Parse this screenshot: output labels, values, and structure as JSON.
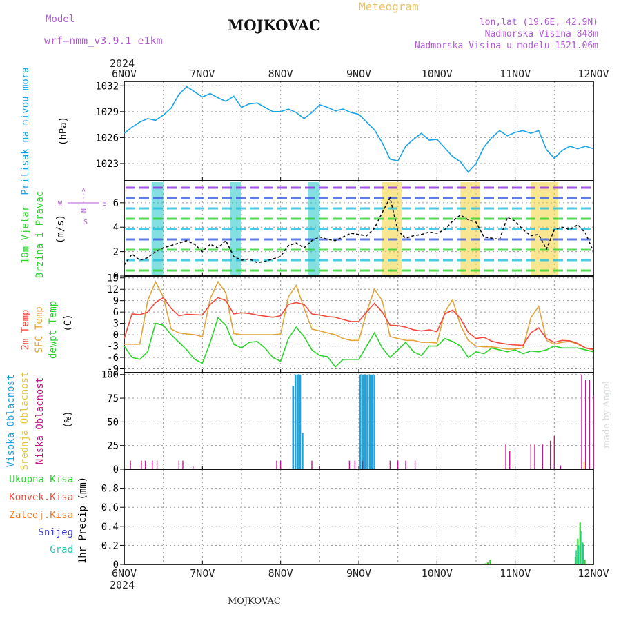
{
  "header": {
    "model_label": "Model",
    "model_name": "wrf—nmm_v3.9.1  e1km",
    "city": "MOJKOVAC",
    "meteogram": "Meteogram",
    "lonlat": "lon,lat (19.6E, 42.9N)",
    "altitude": "Nadmorska Visina 848m",
    "model_altitude": "Nadmorska Visina u modelu 1521.06m"
  },
  "footer": {
    "city": "MOJKOVAC",
    "credit": "made by Angel"
  },
  "time_axis": {
    "year": "2024",
    "ticks": [
      "6NOV",
      "7NOV",
      "8NOV",
      "9NOV",
      "10NOV",
      "11NOV",
      "12NOV"
    ]
  },
  "colors": {
    "pressure": "#1aa3e6",
    "temp2m": "#f04a3e",
    "sfc": "#e3a43a",
    "dewpt": "#2ad42a",
    "high_cloud": "#1aa3e6",
    "mid_cloud": "#e3c43a",
    "low_cloud": "#c2168c",
    "total_precip": "#2ad42a",
    "conv_precip": "#f04a3e",
    "frz": "#f07c2a",
    "snow": "#3c3ce0",
    "hail": "#26c4b4",
    "wind_label": "#2ad42a",
    "compass": "#b05bd3"
  },
  "chart_data": [
    {
      "type": "line",
      "panel": "pressure",
      "ylabel_left": "Pritisak na nivou mora",
      "ylabel_unit": "(hPa)",
      "ylim": [
        1021,
        1032.5
      ],
      "yticks": [
        "1023",
        "1026",
        "1029",
        "1032"
      ],
      "grid": true,
      "series": [
        {
          "x": [
            0,
            0.1,
            0.2,
            0.3,
            0.4,
            0.5,
            0.6,
            0.7,
            0.8,
            0.9,
            1.0,
            1.1,
            1.2,
            1.3,
            1.4,
            1.5,
            1.6,
            1.7,
            1.8,
            1.9,
            2.0,
            2.1,
            2.2,
            2.3,
            2.4,
            2.5,
            2.6,
            2.7,
            2.8,
            2.9,
            3.0,
            3.1,
            3.2,
            3.3,
            3.4,
            3.5,
            3.6,
            3.7,
            3.8,
            3.9,
            4.0,
            4.1,
            4.2,
            4.3,
            4.4,
            4.5,
            4.6,
            4.7,
            4.8,
            4.9,
            5.0,
            5.1,
            5.2,
            5.3,
            5.4,
            5.5,
            5.6,
            5.7,
            5.8,
            5.9,
            6.0
          ],
          "values": [
            1026.5,
            1027.2,
            1027.8,
            1028.2,
            1028.0,
            1028.6,
            1029.4,
            1031.0,
            1031.9,
            1031.3,
            1030.7,
            1031.1,
            1030.6,
            1030.2,
            1030.8,
            1029.5,
            1029.9,
            1030.0,
            1029.5,
            1029.0,
            1029.0,
            1029.3,
            1028.9,
            1028.2,
            1028.9,
            1029.8,
            1029.5,
            1029.1,
            1029.3,
            1028.9,
            1028.7,
            1027.8,
            1026.9,
            1025.4,
            1023.5,
            1023.3,
            1025.0,
            1025.8,
            1026.5,
            1025.7,
            1025.8,
            1024.8,
            1023.8,
            1023.2,
            1022.0,
            1023.0,
            1024.9,
            1026.0,
            1026.8,
            1026.2,
            1026.6,
            1026.8,
            1026.5,
            1026.8,
            1024.6,
            1023.6,
            1024.5,
            1025.0,
            1024.7,
            1025.0,
            1024.7
          ]
        }
      ]
    },
    {
      "type": "line",
      "panel": "wind",
      "ylabel_left": [
        "10m Vjetar",
        "Brzina i Pravac"
      ],
      "ylabel_unit": "(m/s)",
      "ylim": [
        0,
        7.8
      ],
      "yticks": [
        "0",
        "2",
        "4",
        "6"
      ],
      "grid": true,
      "compass": {
        "n": "N",
        "w": "W",
        "e": "E",
        "s": "S"
      },
      "series": [
        {
          "name": "speed",
          "x": [
            0,
            0.1,
            0.2,
            0.3,
            0.4,
            0.5,
            0.6,
            0.7,
            0.8,
            0.9,
            1.0,
            1.1,
            1.2,
            1.3,
            1.4,
            1.5,
            1.6,
            1.7,
            1.8,
            1.9,
            2.0,
            2.1,
            2.2,
            2.3,
            2.4,
            2.5,
            2.6,
            2.7,
            2.8,
            2.9,
            3.0,
            3.1,
            3.2,
            3.3,
            3.4,
            3.5,
            3.6,
            3.7,
            3.8,
            3.9,
            4.0,
            4.1,
            4.2,
            4.3,
            4.4,
            4.5,
            4.6,
            4.7,
            4.8,
            4.9,
            5.0,
            5.1,
            5.2,
            5.3,
            5.4,
            5.5,
            5.6,
            5.7,
            5.8,
            5.9,
            6.0
          ],
          "values": [
            0.9,
            1.8,
            1.3,
            1.5,
            2.0,
            2.3,
            2.5,
            2.7,
            2.9,
            2.6,
            2.0,
            2.6,
            2.3,
            2.9,
            1.6,
            1.3,
            1.4,
            1.1,
            1.2,
            1.4,
            1.6,
            2.5,
            2.7,
            2.3,
            2.9,
            3.2,
            3.0,
            2.9,
            3.2,
            3.5,
            3.4,
            3.3,
            3.9,
            5.2,
            6.4,
            3.7,
            3.1,
            3.3,
            3.4,
            3.6,
            3.5,
            3.8,
            4.5,
            5.0,
            4.6,
            4.4,
            3.2,
            3.1,
            3.0,
            4.8,
            4.5,
            3.8,
            3.3,
            3.4,
            2.2,
            3.8,
            4.0,
            3.8,
            4.2,
            3.5,
            2.0
          ]
        }
      ]
    },
    {
      "type": "line",
      "panel": "temperature",
      "ylabel_left": [
        "2m Temp",
        "SFC Temp",
        "dewpt Temp"
      ],
      "ylabel_unit": "(C)",
      "ylim": [
        -10,
        15.5
      ],
      "yticks": [
        "15",
        "12",
        "9",
        "6",
        "3",
        "0",
        "-3",
        "-6",
        "-9"
      ],
      "grid": true,
      "series": [
        {
          "name": "2m Temp",
          "x": [
            0,
            0.1,
            0.2,
            0.3,
            0.4,
            0.5,
            0.6,
            0.7,
            0.8,
            0.9,
            1.0,
            1.1,
            1.2,
            1.3,
            1.4,
            1.5,
            1.6,
            1.7,
            1.8,
            1.9,
            2.0,
            2.1,
            2.2,
            2.3,
            2.4,
            2.5,
            2.6,
            2.7,
            2.8,
            2.9,
            3.0,
            3.1,
            3.2,
            3.3,
            3.4,
            3.5,
            3.6,
            3.7,
            3.8,
            3.9,
            4.0,
            4.1,
            4.2,
            4.3,
            4.4,
            4.5,
            4.6,
            4.7,
            4.8,
            4.9,
            5.0,
            5.1,
            5.2,
            5.3,
            5.4,
            5.5,
            5.6,
            5.7,
            5.8,
            5.9,
            6.0
          ],
          "values": [
            -1,
            5.5,
            5.3,
            6.0,
            8.5,
            9.8,
            7.0,
            5.0,
            5.4,
            5.3,
            5.2,
            8.0,
            9.8,
            9.0,
            5.5,
            5.8,
            5.6,
            5.2,
            4.9,
            4.6,
            5.0,
            8.0,
            8.5,
            8.0,
            5.5,
            5.2,
            4.8,
            4.6,
            4.0,
            3.5,
            3.5,
            6.0,
            8.3,
            6.0,
            2.5,
            2.4,
            2.0,
            1.3,
            1.0,
            1.3,
            0.8,
            5.5,
            6.5,
            4.3,
            0.6,
            -1.0,
            -0.7,
            -1.7,
            -2.2,
            -2.5,
            -2.7,
            -2.8,
            0.5,
            1.8,
            -1.0,
            -2.0,
            -1.5,
            -1.6,
            -2.3,
            -3.5,
            -3.8
          ]
        },
        {
          "name": "SFC Temp",
          "x": [
            0,
            0.1,
            0.2,
            0.3,
            0.4,
            0.5,
            0.6,
            0.7,
            0.8,
            0.9,
            1.0,
            1.1,
            1.2,
            1.3,
            1.4,
            1.5,
            1.6,
            1.7,
            1.8,
            1.9,
            2.0,
            2.1,
            2.2,
            2.3,
            2.4,
            2.5,
            2.6,
            2.7,
            2.8,
            2.9,
            3.0,
            3.1,
            3.2,
            3.3,
            3.4,
            3.5,
            3.6,
            3.7,
            3.8,
            3.9,
            4.0,
            4.1,
            4.2,
            4.3,
            4.4,
            4.5,
            4.6,
            4.7,
            4.8,
            4.9,
            5.0,
            5.1,
            5.2,
            5.3,
            5.4,
            5.5,
            5.6,
            5.7,
            5.8,
            5.9,
            6.0
          ],
          "values": [
            -2.5,
            -2.5,
            -2.5,
            9.0,
            14.0,
            10.0,
            1.5,
            0.5,
            0.2,
            0.0,
            -0.5,
            9.5,
            14.0,
            11.0,
            0.3,
            0.0,
            0.0,
            0.0,
            0.0,
            0.0,
            0.2,
            10.0,
            13.0,
            7.0,
            1.5,
            1.0,
            0.5,
            0.0,
            -1.0,
            -1.5,
            -1.5,
            6.0,
            12.0,
            9.0,
            -0.5,
            -1.0,
            -1.5,
            -1.5,
            -2.0,
            -2.0,
            -2.2,
            6.0,
            9.2,
            2.5,
            -1.5,
            -3.0,
            -3.2,
            -3.2,
            -3.5,
            -3.8,
            -3.8,
            -3.5,
            4.5,
            7.5,
            -1.5,
            -2.5,
            -2.0,
            -1.8,
            -2.5,
            -3.5,
            -4.0
          ]
        },
        {
          "name": "dewpt Temp",
          "x": [
            0,
            0.1,
            0.2,
            0.3,
            0.4,
            0.5,
            0.6,
            0.7,
            0.8,
            0.9,
            1.0,
            1.1,
            1.2,
            1.3,
            1.4,
            1.5,
            1.6,
            1.7,
            1.8,
            1.9,
            2.0,
            2.1,
            2.2,
            2.3,
            2.4,
            2.5,
            2.6,
            2.7,
            2.8,
            2.9,
            3.0,
            3.1,
            3.2,
            3.3,
            3.4,
            3.5,
            3.6,
            3.7,
            3.8,
            3.9,
            4.0,
            4.1,
            4.2,
            4.3,
            4.4,
            4.5,
            4.6,
            4.7,
            4.8,
            4.9,
            5.0,
            5.1,
            5.2,
            5.3,
            5.4,
            5.5,
            5.6,
            5.7,
            5.8,
            5.9,
            6.0
          ],
          "values": [
            -3.0,
            -6.0,
            -6.5,
            -4.5,
            3.0,
            2.5,
            0.0,
            -2.0,
            -4.0,
            -6.5,
            -7.5,
            -2.0,
            4.5,
            2.5,
            -2.5,
            -3.5,
            -2.0,
            -1.8,
            -3.5,
            -6.0,
            -7.0,
            -1.0,
            2.0,
            -0.5,
            -4.0,
            -5.5,
            -5.8,
            -8.5,
            -6.5,
            -6.5,
            -6.5,
            -3.0,
            0.5,
            -3.5,
            -6.0,
            -4.0,
            -2.0,
            -4.5,
            -5.5,
            -3.0,
            -3.0,
            -1.0,
            -1.8,
            -3.0,
            -6.0,
            -4.5,
            -5.0,
            -3.5,
            -4.0,
            -4.5,
            -4.0,
            -5.0,
            -4.3,
            -4.5,
            -4.0,
            -3.0,
            -3.5,
            -3.5,
            -3.5,
            -4.0,
            -4.5
          ]
        }
      ]
    },
    {
      "type": "bar",
      "panel": "clouds",
      "ylabel_left": [
        "Visoka Oblacnost",
        "Srednja Oblacnost",
        "Niska Oblacnost"
      ],
      "ylabel_unit": "(%)",
      "ylim": [
        0,
        102
      ],
      "yticks": [
        "0",
        "25",
        "50",
        "75",
        "100"
      ],
      "grid": true,
      "series": [
        {
          "name": "Visoka Oblacnost",
          "x": [
            2.16,
            2.19,
            2.22,
            2.25,
            2.28,
            3.02,
            3.05,
            3.08,
            3.11,
            3.14,
            3.17,
            3.2
          ],
          "values": [
            88,
            100,
            100,
            100,
            38,
            100,
            100,
            100,
            100,
            100,
            100,
            100
          ]
        },
        {
          "name": "Niska Oblacnost",
          "x": [
            0.08,
            0.22,
            0.27,
            0.36,
            0.42,
            0.7,
            0.75,
            0.88,
            1.95,
            2.0,
            2.4,
            2.5,
            2.88,
            2.95,
            3.05,
            3.4,
            3.5,
            3.6,
            3.72,
            4.88,
            4.93,
            5.2,
            5.25,
            5.35,
            5.45,
            5.5,
            5.58,
            5.85,
            5.9,
            5.95,
            6.0
          ],
          "values": [
            9,
            9,
            9,
            9,
            9,
            9,
            9,
            3,
            9,
            9,
            9,
            3,
            9,
            9,
            9,
            9,
            9,
            9,
            9,
            26,
            19,
            26,
            26,
            26,
            30,
            35,
            4,
            100,
            94,
            94,
            78
          ]
        },
        {
          "name": "Srednja Oblacnost",
          "x": [
            5.88
          ],
          "values": [
            8
          ]
        }
      ]
    },
    {
      "type": "bar",
      "panel": "precipitation",
      "ylabel_left": [
        "Ukupna Kisa",
        "Konvek.Kisa",
        "Zaledj.Kisa",
        "Snijeg",
        "Grad"
      ],
      "ylabel_unit": "1hr Precip (mm)",
      "ylim": [
        0,
        1.0
      ],
      "yticks": [
        "0",
        "0.2",
        "0.4",
        "0.6",
        "0.8"
      ],
      "grid": true,
      "series": [
        {
          "name": "Ukupna Kisa",
          "x": [
            4.62,
            4.65,
            4.68,
            5.77,
            5.8,
            5.83,
            5.86,
            5.89
          ],
          "values": [
            0.01,
            0.02,
            0.05,
            0.08,
            0.27,
            0.44,
            0.23,
            0.05
          ]
        },
        {
          "name": "Grad",
          "x": [
            5.78,
            5.81,
            5.84,
            5.87
          ],
          "values": [
            0.15,
            0.2,
            0.35,
            0.22
          ]
        }
      ]
    }
  ]
}
